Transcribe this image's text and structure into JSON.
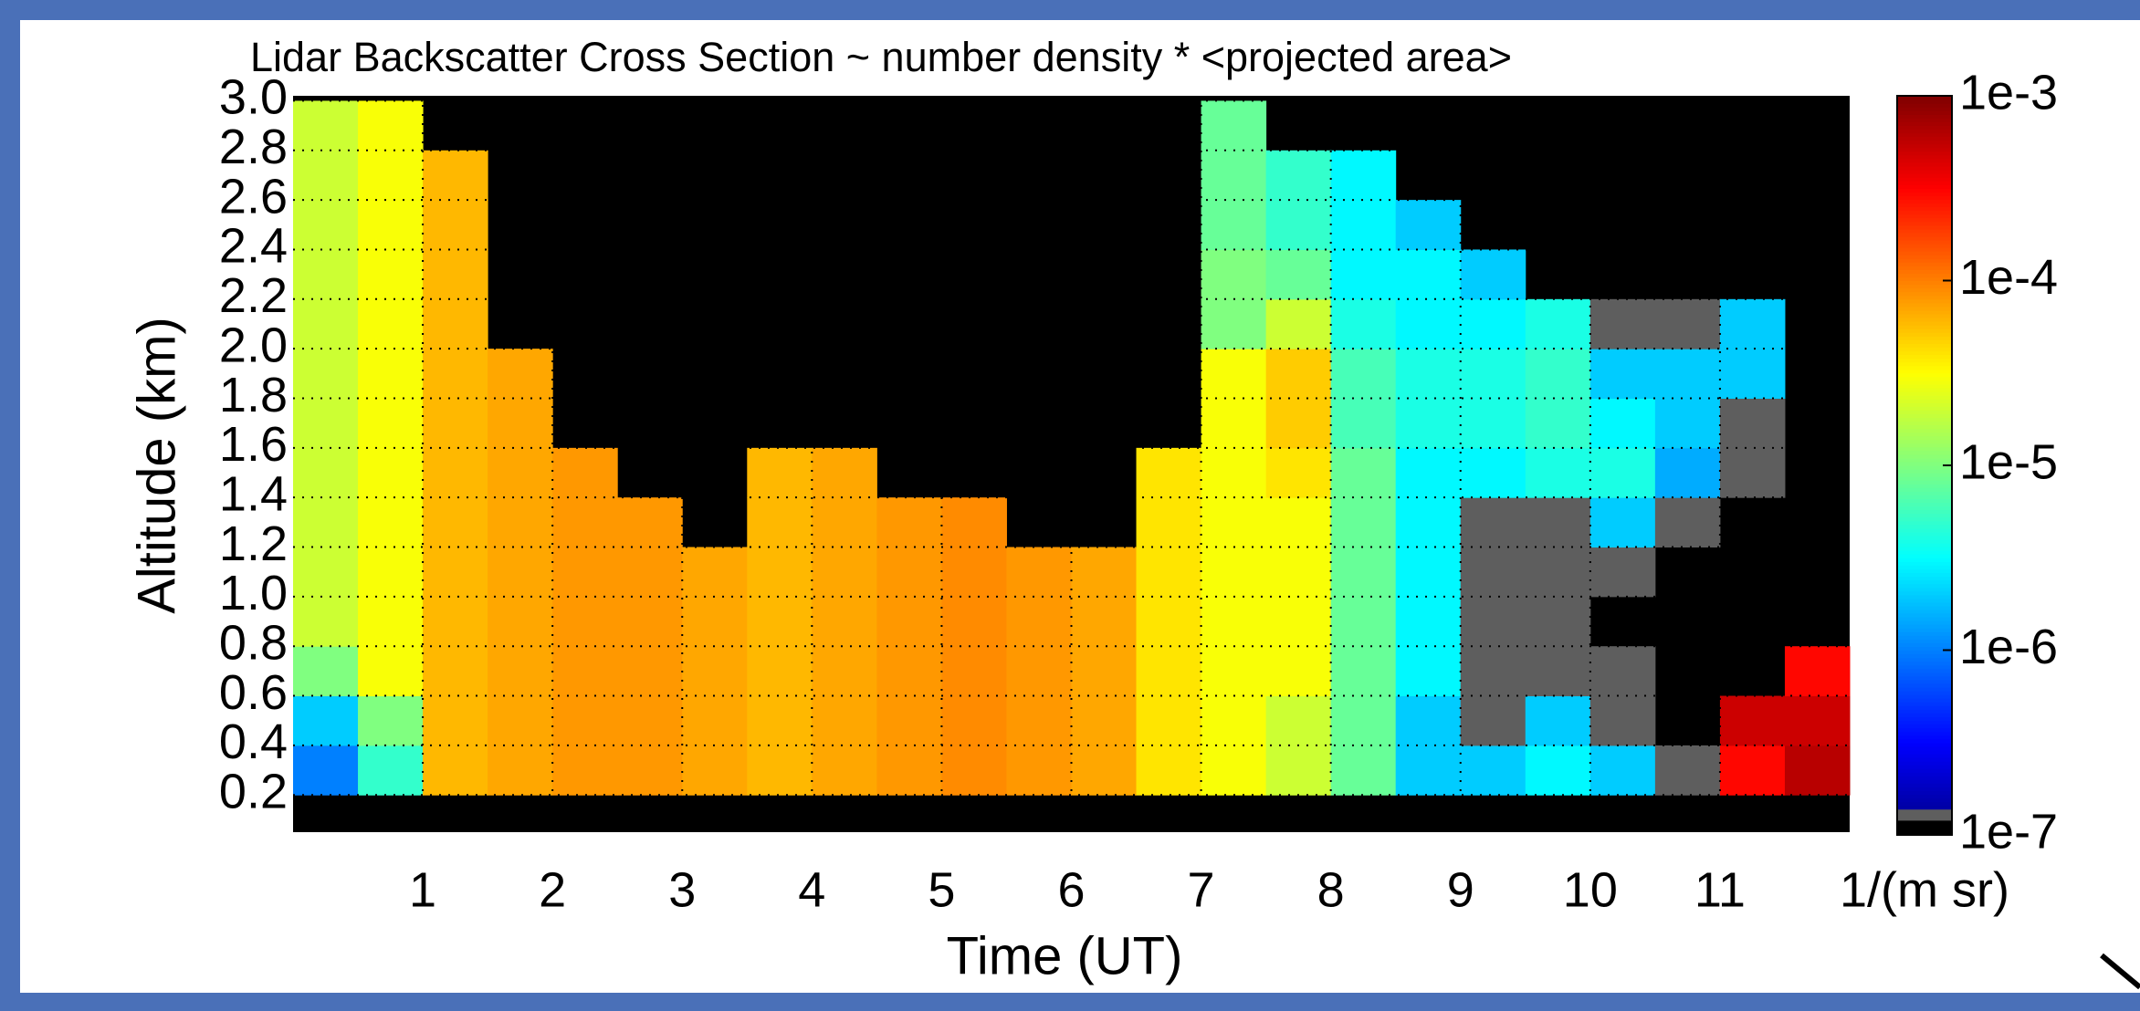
{
  "chart_data": {
    "type": "heatmap",
    "title": "Lidar Backscatter Cross Section  ~ number density * <projected area>",
    "xlabel": "Time (UT)",
    "ylabel": "Altitude (km)",
    "xlim": [
      0,
      12
    ],
    "ylim": [
      0.05,
      3.02
    ],
    "xticks": [
      1,
      2,
      3,
      4,
      5,
      6,
      7,
      8,
      9,
      10,
      11
    ],
    "yticks": [
      0.2,
      0.4,
      0.6,
      0.8,
      {
        "value": 1,
        "label": "1.0"
      },
      1.2,
      1.4,
      1.6,
      1.8,
      {
        "value": 2,
        "label": "2.0"
      },
      2.2,
      2.4,
      2.6,
      2.8,
      {
        "value": 3,
        "label": "3.0"
      }
    ],
    "grid": true,
    "x": [
      0.25,
      0.75,
      1.25,
      1.75,
      2.25,
      2.75,
      3.25,
      3.75,
      4.25,
      4.75,
      5.25,
      5.75,
      6.25,
      6.75,
      7.25,
      7.75,
      8.25,
      8.75,
      9.25,
      9.75,
      10.25,
      10.75,
      11.25,
      11.75
    ],
    "y": [
      0.3,
      0.5,
      0.7,
      0.9,
      1.1,
      1.3,
      1.5,
      1.7,
      1.9,
      2.1,
      2.3,
      2.5,
      2.7,
      2.9
    ],
    "z": [
      [
        1e-06,
        5e-06,
        6e-05,
        7e-05,
        8e-05,
        8e-05,
        7e-05,
        6e-05,
        7e-05,
        8e-05,
        9e-05,
        8e-05,
        7e-05,
        4e-05,
        3e-05,
        2e-05,
        8e-06,
        2e-06,
        2e-06,
        3e-06,
        2e-06,
        1.2e-07,
        0.0003,
        0.0006
      ],
      [
        2e-06,
        1e-05,
        6e-05,
        7e-05,
        8e-05,
        8e-05,
        7e-05,
        6e-05,
        7e-05,
        8e-05,
        9e-05,
        8e-05,
        7e-05,
        4e-05,
        3e-05,
        2e-05,
        8e-06,
        2e-06,
        1.2e-07,
        2e-06,
        1.2e-07,
        null,
        0.0005,
        0.0005
      ],
      [
        1e-05,
        3e-05,
        6e-05,
        7e-05,
        8e-05,
        8e-05,
        7e-05,
        6e-05,
        7e-05,
        8e-05,
        9e-05,
        8e-05,
        7e-05,
        4e-05,
        3e-05,
        3e-05,
        8e-06,
        3e-06,
        1.2e-07,
        1.2e-07,
        1.2e-07,
        null,
        null,
        0.0003
      ],
      [
        2e-05,
        3e-05,
        6e-05,
        7e-05,
        8e-05,
        8e-05,
        7e-05,
        6e-05,
        7e-05,
        8e-05,
        9e-05,
        8e-05,
        7e-05,
        4e-05,
        3e-05,
        3e-05,
        8e-06,
        3e-06,
        1.2e-07,
        1.2e-07,
        null,
        null,
        null,
        null
      ],
      [
        2e-05,
        3e-05,
        6e-05,
        7e-05,
        8e-05,
        8e-05,
        7e-05,
        6e-05,
        7e-05,
        8e-05,
        9e-05,
        8e-05,
        7e-05,
        4e-05,
        3e-05,
        3e-05,
        8e-06,
        3e-06,
        1.2e-07,
        1.2e-07,
        1.2e-07,
        null,
        null,
        null
      ],
      [
        2e-05,
        3e-05,
        6e-05,
        7e-05,
        8e-05,
        8e-05,
        null,
        6e-05,
        7e-05,
        8e-05,
        9e-05,
        null,
        null,
        4e-05,
        3e-05,
        3e-05,
        8e-06,
        3e-06,
        1.2e-07,
        1.2e-07,
        2e-06,
        1.2e-07,
        null,
        null
      ],
      [
        2e-05,
        3e-05,
        6e-05,
        7e-05,
        8e-05,
        null,
        null,
        6e-05,
        7e-05,
        null,
        null,
        null,
        null,
        4e-05,
        3e-05,
        4e-05,
        8e-06,
        3e-06,
        3e-06,
        4e-06,
        4e-06,
        1.5e-06,
        1.2e-07,
        null
      ],
      [
        2e-05,
        3e-05,
        6e-05,
        7e-05,
        null,
        null,
        null,
        null,
        null,
        null,
        null,
        null,
        null,
        null,
        3e-05,
        5e-05,
        6e-06,
        4e-06,
        4e-06,
        5e-06,
        3e-06,
        2e-06,
        1.2e-07,
        null
      ],
      [
        2e-05,
        3e-05,
        6e-05,
        7e-05,
        null,
        null,
        null,
        null,
        null,
        null,
        null,
        null,
        null,
        null,
        3e-05,
        5e-05,
        6e-06,
        4e-06,
        4e-06,
        5e-06,
        2e-06,
        2e-06,
        2e-06,
        null
      ],
      [
        2e-05,
        3e-05,
        6e-05,
        null,
        null,
        null,
        null,
        null,
        null,
        null,
        null,
        null,
        null,
        null,
        1e-05,
        2e-05,
        4e-06,
        3e-06,
        3e-06,
        4e-06,
        1.2e-07,
        1.2e-07,
        2e-06,
        null
      ],
      [
        2e-05,
        3e-05,
        6e-05,
        null,
        null,
        null,
        null,
        null,
        null,
        null,
        null,
        null,
        null,
        null,
        1e-05,
        8e-06,
        3e-06,
        3e-06,
        2e-06,
        null,
        null,
        null,
        null,
        null
      ],
      [
        2e-05,
        3e-05,
        6e-05,
        null,
        null,
        null,
        null,
        null,
        null,
        null,
        null,
        null,
        null,
        null,
        8e-06,
        5e-06,
        3e-06,
        2e-06,
        null,
        null,
        null,
        null,
        null,
        null
      ],
      [
        2e-05,
        3e-05,
        6e-05,
        null,
        null,
        null,
        null,
        null,
        null,
        null,
        null,
        null,
        null,
        null,
        8e-06,
        5e-06,
        3e-06,
        null,
        null,
        null,
        null,
        null,
        null,
        null
      ],
      [
        2e-05,
        3e-05,
        null,
        null,
        null,
        null,
        null,
        null,
        null,
        null,
        null,
        null,
        null,
        null,
        8e-06,
        null,
        null,
        null,
        null,
        null,
        null,
        null,
        null,
        null
      ]
    ],
    "colorbar": {
      "log": true,
      "lim": [
        1e-07,
        0.001
      ],
      "label": "1/(m sr)",
      "colormap": "jet",
      "ticks": [
        {
          "value": 0.001,
          "label": "1e-3"
        },
        {
          "value": 0.0001,
          "label": "1e-4"
        },
        {
          "value": 1e-05,
          "label": "1e-5"
        },
        {
          "value": 1e-06,
          "label": "1e-6"
        },
        {
          "value": 1e-07,
          "label": "1e-7"
        }
      ]
    }
  }
}
